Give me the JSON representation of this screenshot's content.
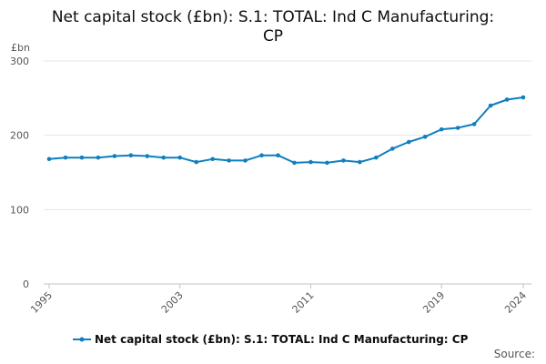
{
  "chart_data": {
    "type": "line",
    "title_lines": [
      "Net capital stock (£bn): S.1: TOTAL: Ind C Manufacturing:",
      "CP"
    ],
    "ylabel": "£bn",
    "xlabel": "",
    "ylim": [
      0,
      300
    ],
    "yticks": [
      "0",
      "100",
      "200",
      "300"
    ],
    "xtick_years": [
      "1995",
      "2003",
      "2011",
      "2019",
      "2024"
    ],
    "x": [
      1995,
      1996,
      1997,
      1998,
      1999,
      2000,
      2001,
      2002,
      2003,
      2004,
      2005,
      2006,
      2007,
      2008,
      2009,
      2010,
      2011,
      2012,
      2013,
      2014,
      2015,
      2016,
      2017,
      2018,
      2019,
      2020,
      2021,
      2022,
      2023,
      2024
    ],
    "series": [
      {
        "name": "Net capital stock (£bn): S.1: TOTAL: Ind C Manufacturing: CP",
        "color": "#0f7fbe",
        "values": [
          168,
          170,
          170,
          170,
          172,
          173,
          172,
          170,
          170,
          164,
          168,
          166,
          166,
          173,
          173,
          163,
          164,
          163,
          166,
          164,
          170,
          182,
          191,
          198,
          208,
          210,
          215,
          240,
          248,
          251
        ]
      }
    ],
    "grid": true,
    "legend_position": "bottom"
  },
  "source_label": "Source:"
}
